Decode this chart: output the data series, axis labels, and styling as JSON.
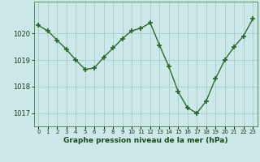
{
  "x": [
    0,
    1,
    2,
    3,
    4,
    5,
    6,
    7,
    8,
    9,
    10,
    11,
    12,
    13,
    14,
    15,
    16,
    17,
    18,
    19,
    20,
    21,
    22,
    23
  ],
  "y": [
    1020.3,
    1020.1,
    1019.75,
    1019.4,
    1019.0,
    1018.65,
    1018.7,
    1019.1,
    1019.45,
    1019.8,
    1020.1,
    1020.2,
    1020.4,
    1019.55,
    1018.75,
    1017.8,
    1017.2,
    1017.0,
    1017.45,
    1018.3,
    1019.0,
    1019.5,
    1019.9,
    1020.55
  ],
  "line_color": "#2d6a2d",
  "marker_color": "#2d6a2d",
  "bg_color": "#cce8e8",
  "grid_color": "#aacece",
  "xlabel": "Graphe pression niveau de la mer (hPa)",
  "xlabel_color": "#1a4a1a",
  "ylabel_ticks": [
    1017,
    1018,
    1019,
    1020
  ],
  "xtick_labels": [
    "0",
    "1",
    "2",
    "3",
    "4",
    "5",
    "6",
    "7",
    "8",
    "9",
    "10",
    "11",
    "12",
    "13",
    "14",
    "15",
    "16",
    "17",
    "18",
    "19",
    "20",
    "21",
    "22",
    "23"
  ],
  "ylim": [
    1016.5,
    1021.2
  ],
  "xlim": [
    -0.5,
    23.5
  ]
}
